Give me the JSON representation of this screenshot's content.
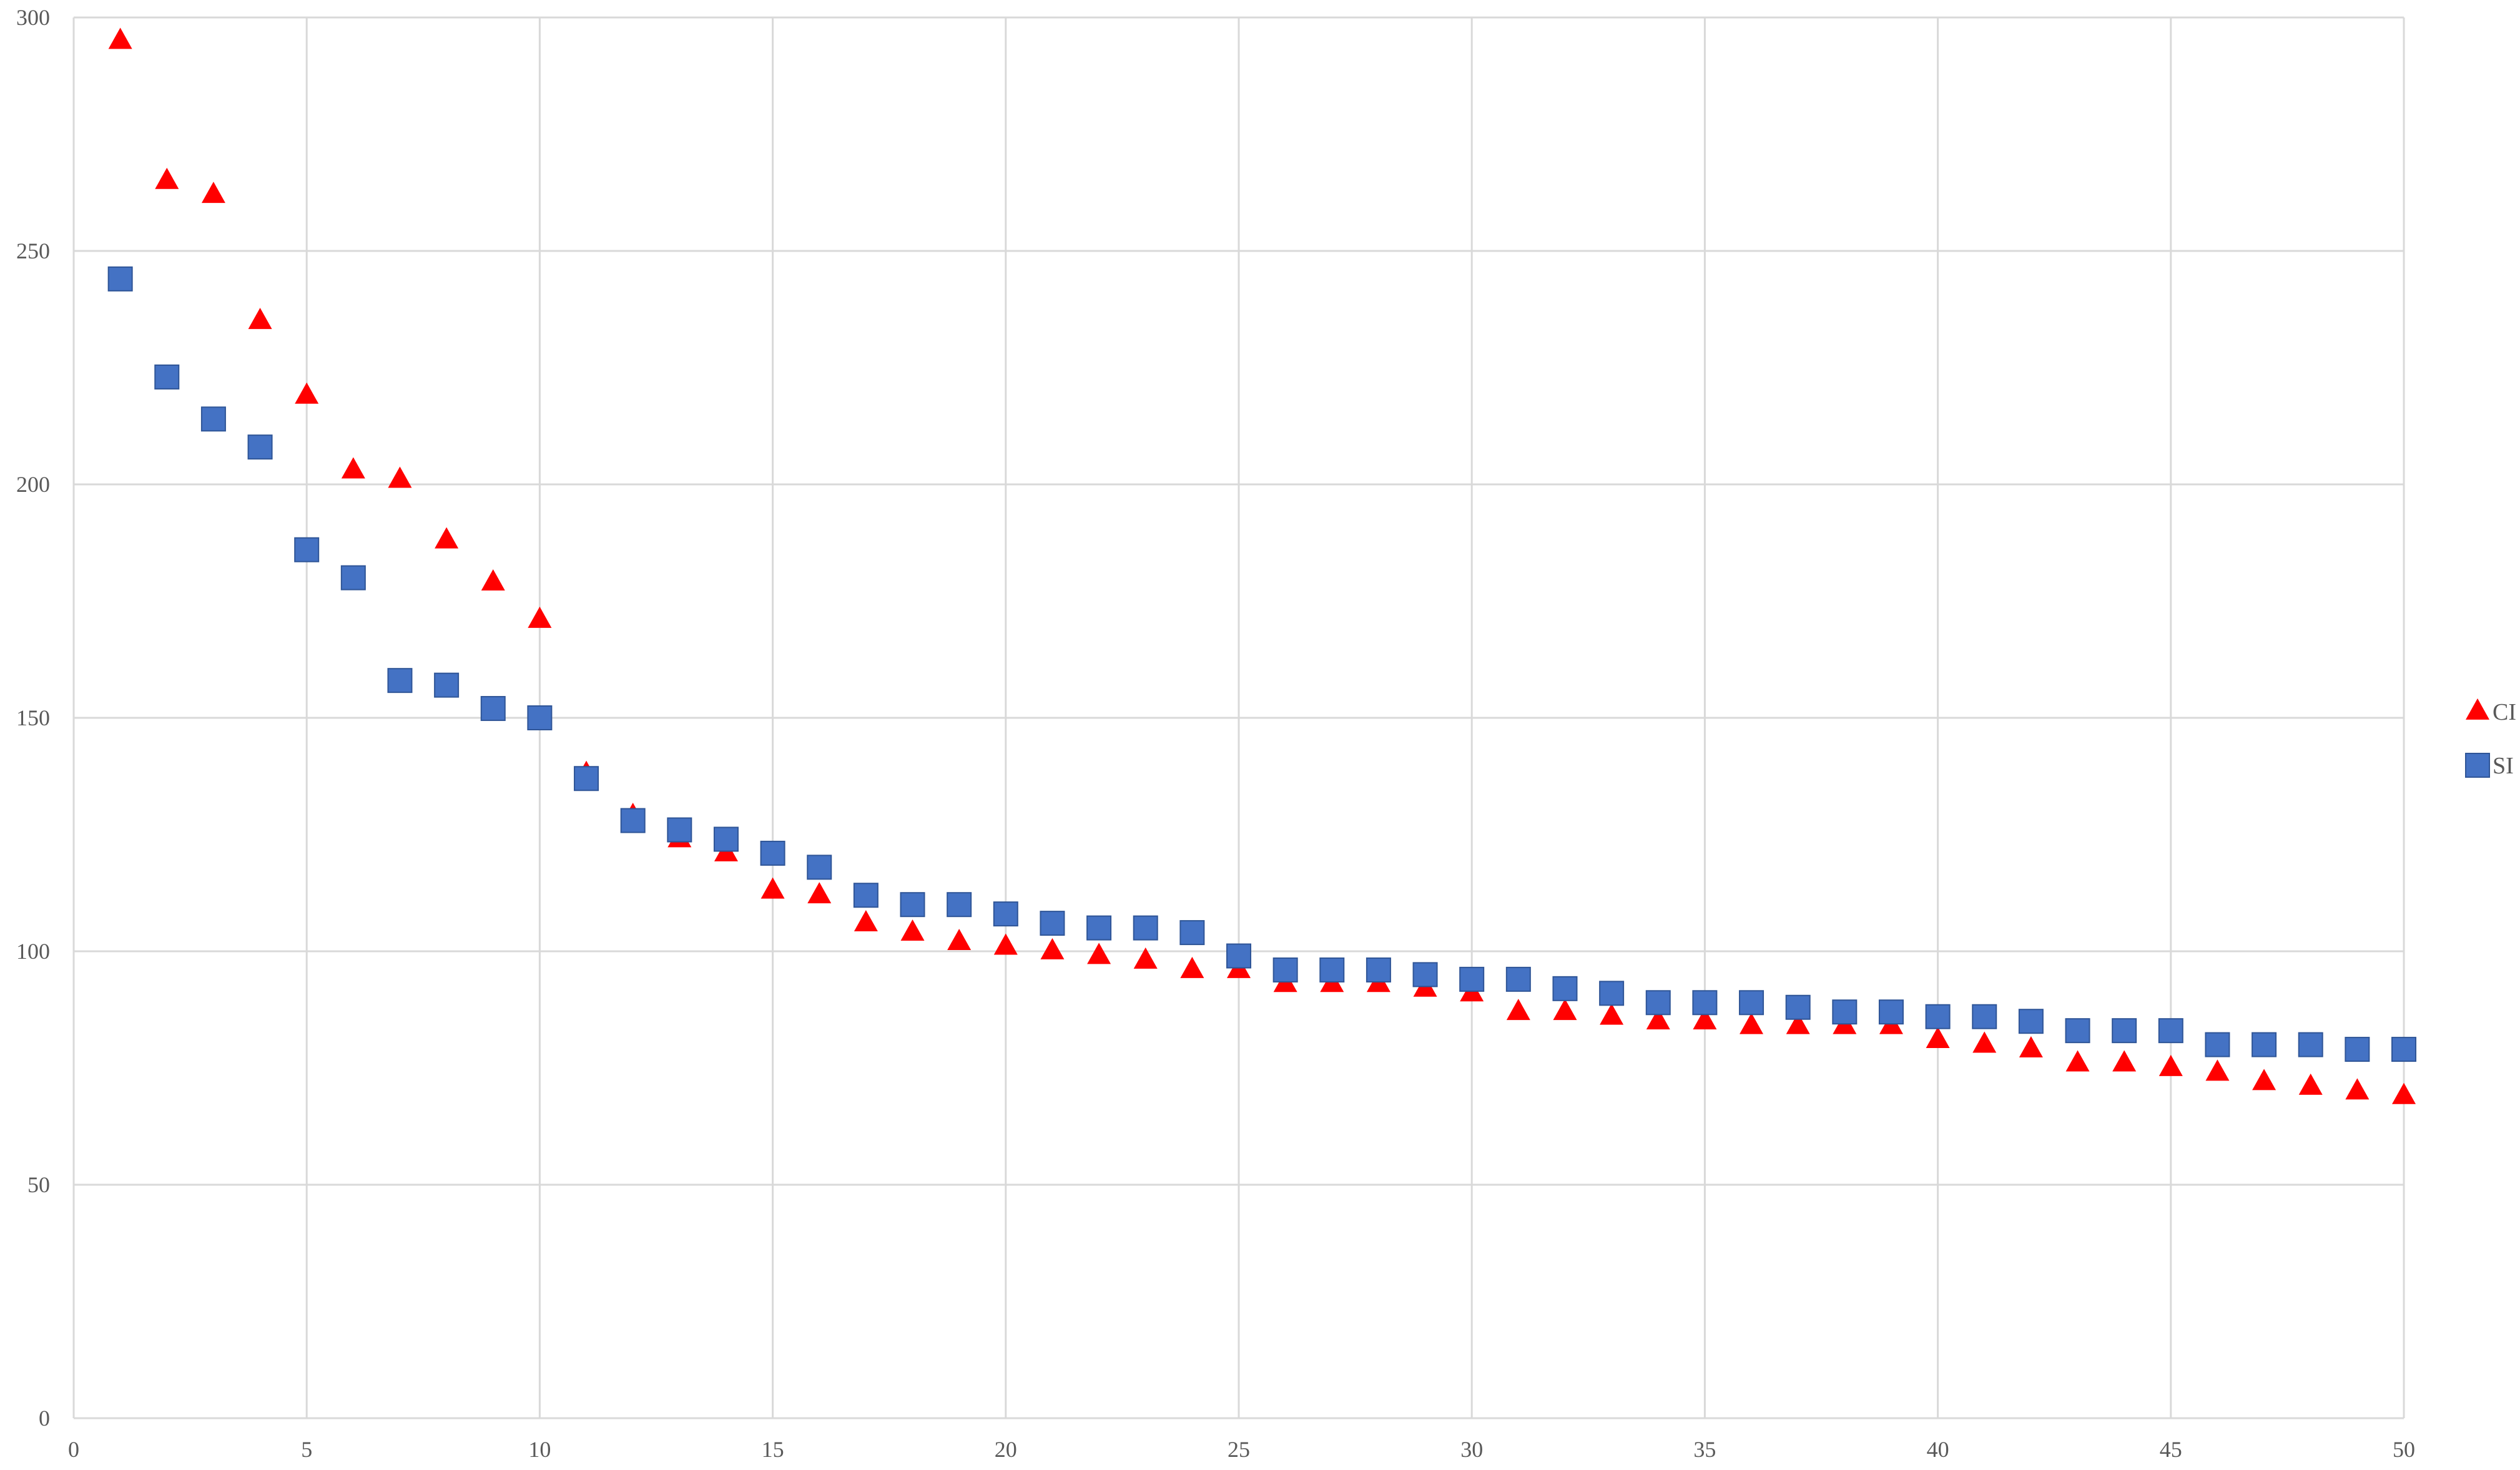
{
  "chart_data": {
    "type": "scatter",
    "title": "",
    "xlabel": "",
    "ylabel": "",
    "xlim": [
      0,
      50
    ],
    "ylim": [
      0,
      300
    ],
    "xticks": [
      0,
      5,
      10,
      15,
      20,
      25,
      30,
      35,
      40,
      45,
      50
    ],
    "yticks": [
      0,
      50,
      100,
      150,
      200,
      250,
      300
    ],
    "grid": true,
    "legend_position": "right",
    "series": [
      {
        "name": "CI",
        "marker": "triangle",
        "color": "#ff0000",
        "x": [
          1,
          2,
          3,
          4,
          5,
          6,
          7,
          8,
          9,
          10,
          11,
          12,
          13,
          14,
          15,
          16,
          17,
          18,
          19,
          20,
          21,
          22,
          23,
          24,
          25,
          26,
          27,
          28,
          29,
          30,
          31,
          32,
          33,
          34,
          35,
          36,
          37,
          38,
          39,
          40,
          41,
          42,
          43,
          44,
          45,
          46,
          47,
          48,
          49,
          50
        ],
        "values": [
          295,
          265,
          262,
          235,
          219,
          203,
          201,
          188,
          179,
          171,
          138,
          129,
          124,
          121,
          113,
          112,
          106,
          104,
          102,
          101,
          100,
          99,
          98,
          96,
          96,
          93,
          93,
          93,
          92,
          91,
          87,
          87,
          86,
          85,
          85,
          84,
          84,
          84,
          84,
          81,
          80,
          79,
          76,
          76,
          75,
          74,
          72,
          71,
          70,
          69
        ]
      },
      {
        "name": "SI",
        "marker": "square",
        "color": "#4472c4",
        "x": [
          1,
          2,
          3,
          4,
          5,
          6,
          7,
          8,
          9,
          10,
          11,
          12,
          13,
          14,
          15,
          16,
          17,
          18,
          19,
          20,
          21,
          22,
          23,
          24,
          25,
          26,
          27,
          28,
          29,
          30,
          31,
          32,
          33,
          34,
          35,
          36,
          37,
          38,
          39,
          40,
          41,
          42,
          43,
          44,
          45,
          46,
          47,
          48,
          49,
          50
        ],
        "values": [
          244,
          223,
          214,
          208,
          186,
          180,
          158,
          157,
          152,
          150,
          137,
          128,
          126,
          124,
          121,
          118,
          112,
          110,
          110,
          108,
          106,
          105,
          105,
          104,
          99,
          96,
          96,
          96,
          95,
          94,
          94,
          92,
          91,
          89,
          89,
          89,
          88,
          87,
          87,
          86,
          86,
          85,
          83,
          83,
          83,
          80,
          80,
          80,
          79,
          79
        ]
      }
    ]
  }
}
